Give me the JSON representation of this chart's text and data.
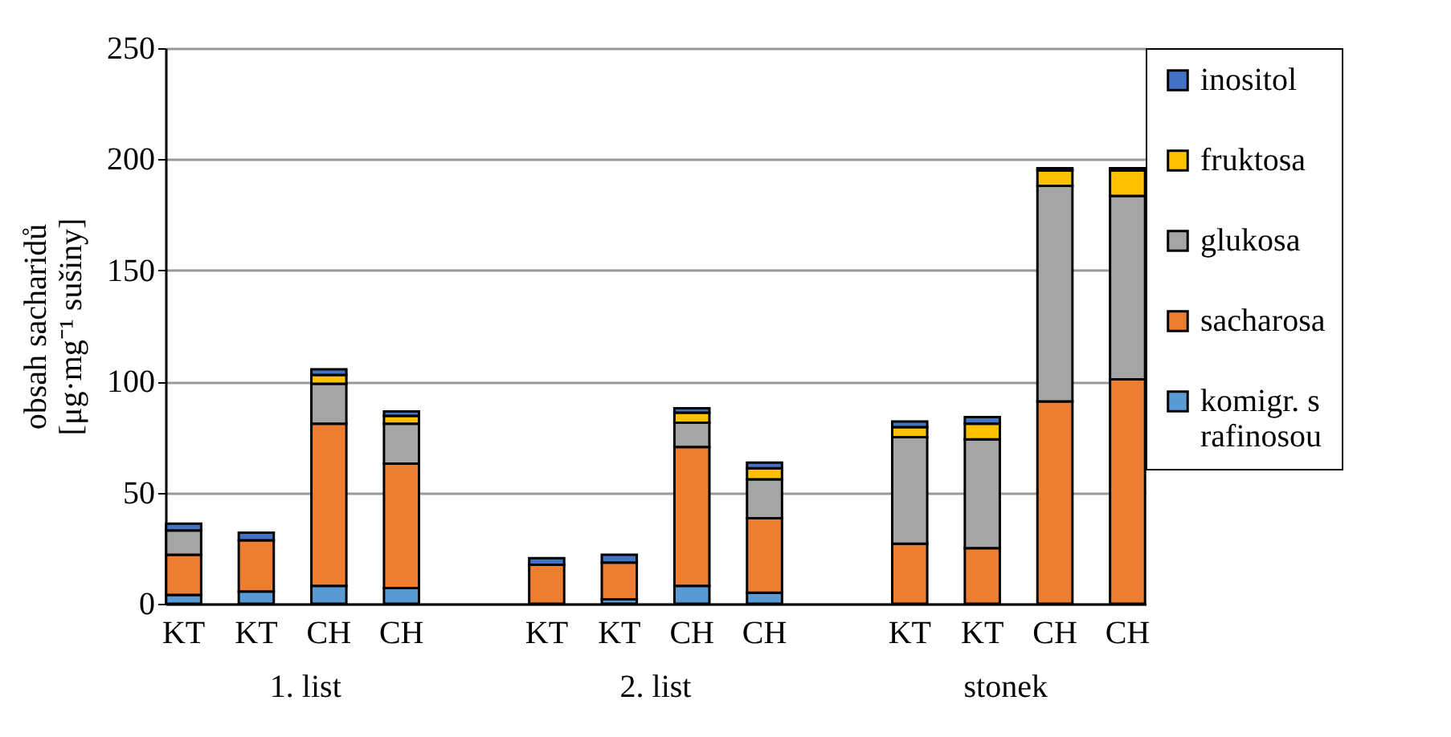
{
  "chart_data": {
    "type": "bar",
    "stacked": true,
    "ylabel": "obsah sacharidů [μg·mg⁻¹ sušiny]",
    "categories": [
      "KT",
      "KT",
      "CH",
      "CH",
      null,
      "KT",
      "KT",
      "CH",
      "CH",
      null,
      "KT",
      "KT",
      "CH",
      "CH"
    ],
    "annotations": [
      "1. list",
      "2. list",
      "stonek"
    ],
    "series": [
      {
        "name": "komigr. s rafinosou",
        "color": "#5b9bd5",
        "values": [
          4,
          5.5,
          8,
          7,
          null,
          null,
          2,
          8,
          5,
          null,
          0,
          0,
          0,
          0
        ]
      },
      {
        "name": "sacharosa",
        "color": "#ed7d31",
        "values": [
          18,
          23,
          73,
          56,
          null,
          17.5,
          16.5,
          62.5,
          33.5,
          null,
          27,
          25,
          91,
          101
        ]
      },
      {
        "name": "glukosa",
        "color": "#a5a5a5",
        "values": [
          11,
          0,
          18,
          18,
          null,
          0,
          0,
          11,
          17.5,
          null,
          48,
          49,
          97,
          82.5
        ]
      },
      {
        "name": "fruktosa",
        "color": "#ffc000",
        "values": [
          0,
          0,
          4,
          3.5,
          null,
          0,
          0,
          4.5,
          5,
          null,
          4.5,
          7,
          7,
          11.5
        ]
      },
      {
        "name": "inositol",
        "color": "#4472c4",
        "values": [
          3,
          3.5,
          2.5,
          2,
          null,
          3,
          3.5,
          2,
          2.5,
          null,
          2.5,
          3,
          1,
          1
        ]
      }
    ],
    "ylim": [
      0,
      250
    ],
    "yticks": [
      0,
      50,
      100,
      150,
      200,
      250
    ],
    "grid": "y",
    "legend": "right"
  }
}
